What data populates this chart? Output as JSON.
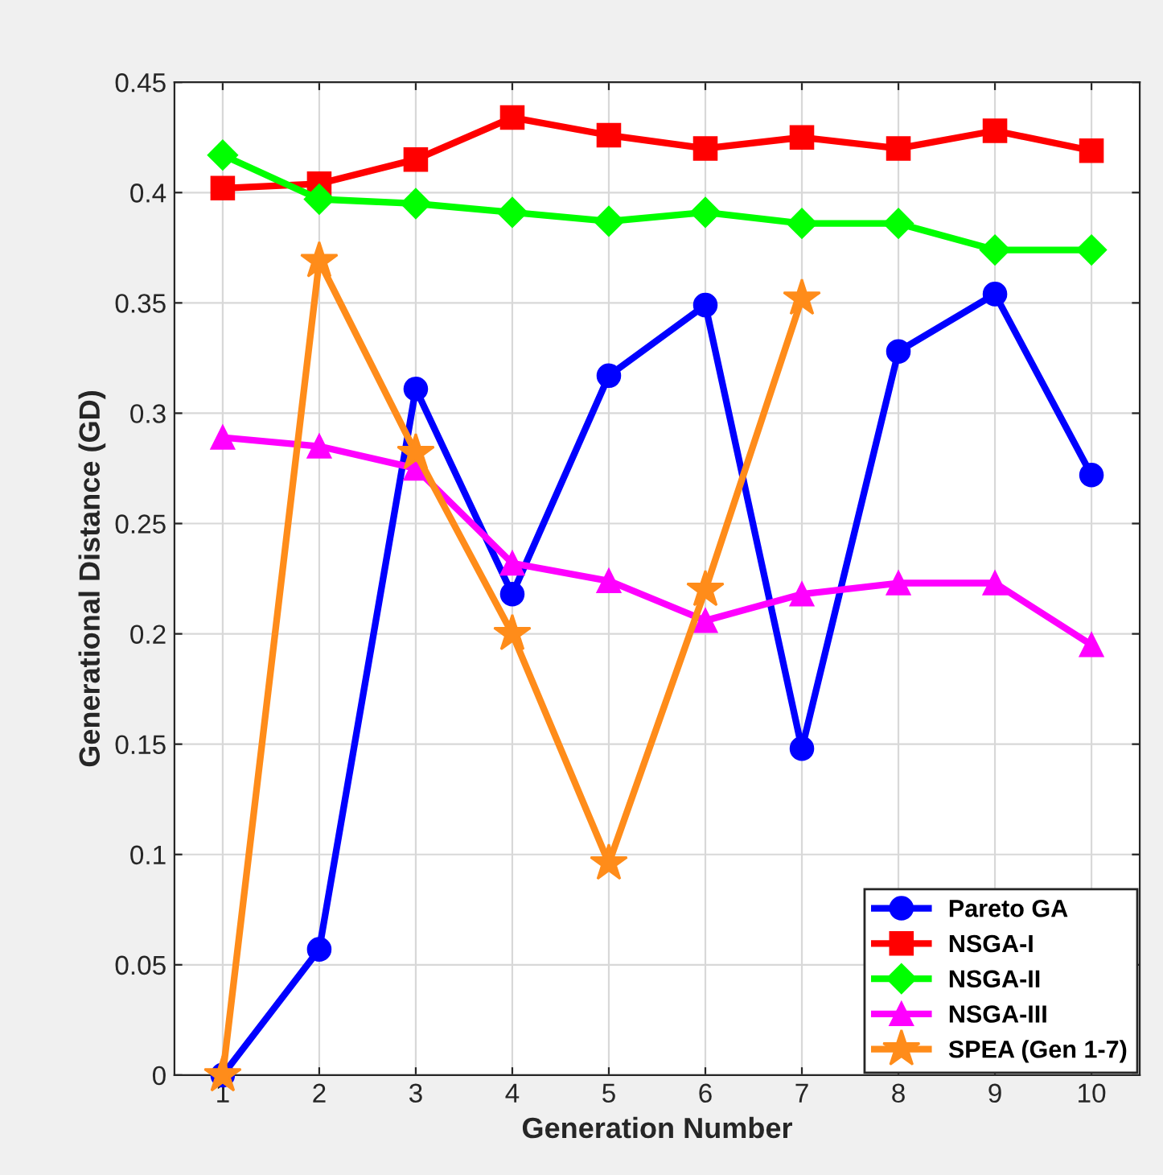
{
  "chart_data": {
    "type": "line",
    "xlabel": "Generation Number",
    "ylabel": "Generational Distance (GD)",
    "x": [
      1,
      2,
      3,
      4,
      5,
      6,
      7,
      8,
      9,
      10
    ],
    "series": [
      {
        "name": "Pareto GA",
        "color": "#0000ff",
        "marker": "circle",
        "values": [
          0,
          0.057,
          0.311,
          0.218,
          0.317,
          0.349,
          0.148,
          0.328,
          0.354,
          0.272
        ]
      },
      {
        "name": "NSGA-I",
        "color": "#ff0000",
        "marker": "square",
        "values": [
          0.402,
          0.404,
          0.415,
          0.434,
          0.426,
          0.42,
          0.425,
          0.42,
          0.428,
          0.419
        ]
      },
      {
        "name": "NSGA-II",
        "color": "#00ff00",
        "marker": "diamond",
        "values": [
          0.417,
          0.397,
          0.395,
          0.391,
          0.387,
          0.391,
          0.386,
          0.386,
          0.374,
          0.374
        ]
      },
      {
        "name": "NSGA-III",
        "color": "#ff00ff",
        "marker": "triangle",
        "values": [
          0.289,
          0.285,
          0.275,
          0.232,
          0.224,
          0.206,
          0.218,
          0.223,
          0.223,
          0.195
        ]
      },
      {
        "name": "SPEA (Gen 1-7)",
        "color": "#ff8c1a",
        "marker": "star",
        "x": [
          1,
          2,
          3,
          4,
          5,
          6,
          7
        ],
        "values": [
          0,
          0.369,
          0.282,
          0.2,
          0.096,
          0.22,
          0.352
        ]
      }
    ],
    "xlim": [
      0.5,
      10.5
    ],
    "xticks": [
      1,
      2,
      3,
      4,
      5,
      6,
      7,
      8,
      9,
      10
    ],
    "ylim": [
      0,
      0.45
    ],
    "yticks": [
      0,
      0.05,
      0.1,
      0.15,
      0.2,
      0.25,
      0.3,
      0.35,
      0.4,
      0.45
    ],
    "grid": true,
    "legend": "bottom right",
    "line_style": "solid"
  }
}
